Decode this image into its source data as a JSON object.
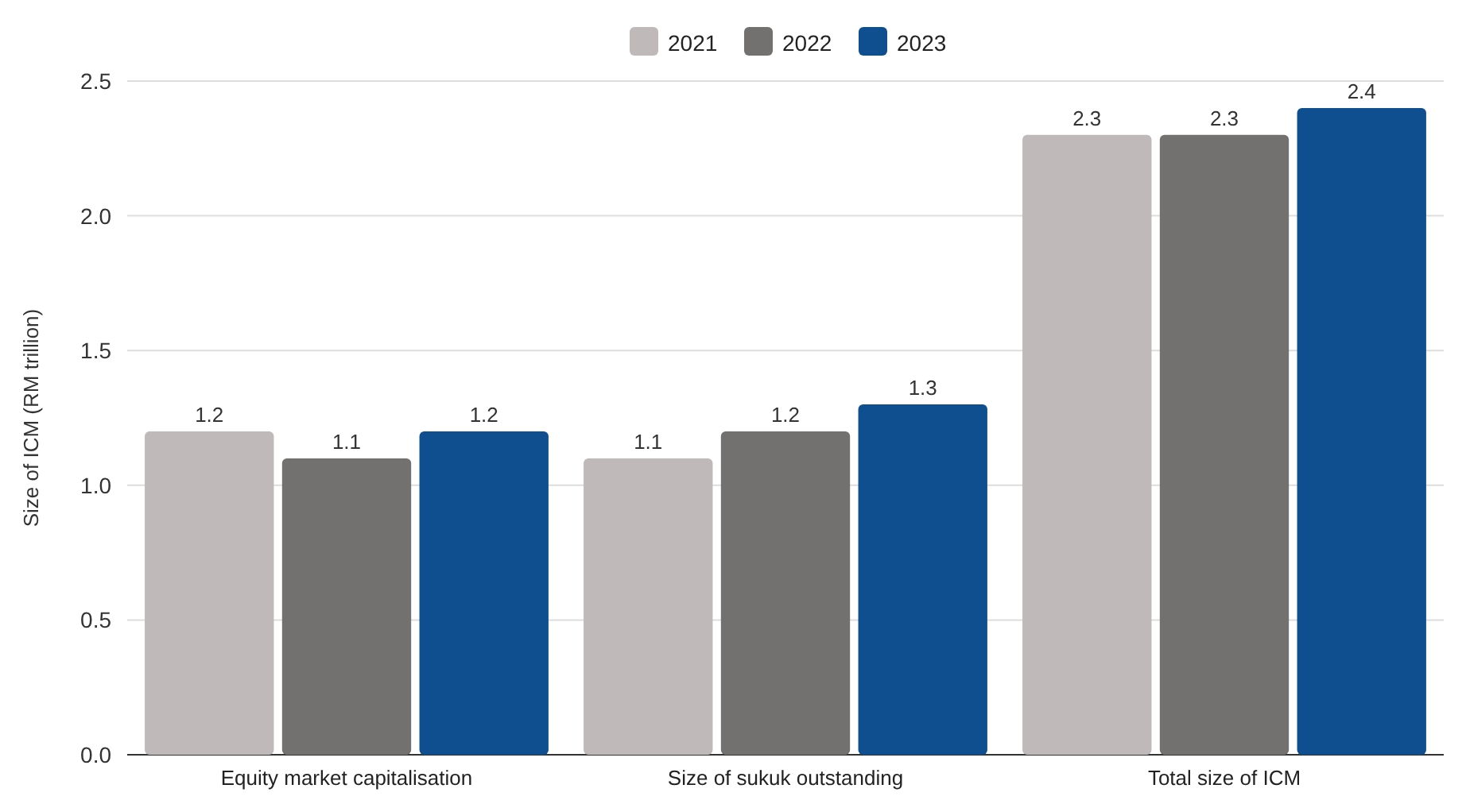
{
  "chart_data": {
    "type": "bar",
    "ylabel": "Size of ICM (RM trillion)",
    "categories": [
      "Equity market capitalisation",
      "Size of sukuk outstanding",
      "Total size of ICM"
    ],
    "series": [
      {
        "name": "2021",
        "color": "#bfb9b9",
        "values": [
          1.2,
          1.1,
          2.3
        ]
      },
      {
        "name": "2022",
        "color": "#737070",
        "values": [
          1.1,
          1.2,
          2.3
        ]
      },
      {
        "name": "2023",
        "color": "#0f4f8f",
        "values": [
          1.2,
          1.3,
          2.4
        ]
      }
    ],
    "ylim": [
      0,
      2.5
    ],
    "yticks": [
      {
        "value": 0,
        "label": "0.0"
      },
      {
        "value": 0.5,
        "label": "0.5"
      },
      {
        "value": 1,
        "label": "1.0"
      },
      {
        "value": 1.5,
        "label": "1.5"
      },
      {
        "value": 2,
        "label": "2.0"
      },
      {
        "value": 2.5,
        "label": "2.5"
      }
    ],
    "grid": "y",
    "legend": "top",
    "data_labels": true
  }
}
